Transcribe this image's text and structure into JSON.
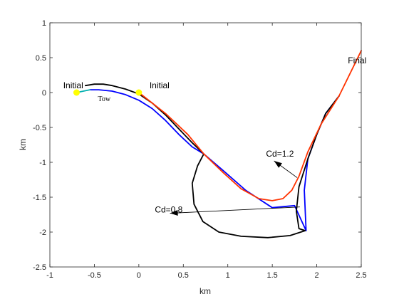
{
  "chart_data": {
    "type": "line",
    "xlabel": "km",
    "ylabel": "km",
    "xlim": [
      -1,
      2.5
    ],
    "ylim": [
      -2.5,
      1
    ],
    "xticks": [
      "-1",
      "-0.5",
      "0",
      "0.5",
      "1",
      "1.5",
      "2",
      "2.5"
    ],
    "yticks": [
      "1",
      "0.5",
      "0",
      "-0.5",
      "-1",
      "-1.5",
      "-2",
      "-2.5"
    ],
    "grid": false,
    "series": [
      {
        "color": "#0000ff",
        "x": [
          -0.55,
          -0.45,
          -0.3,
          -0.15,
          0,
          0.15,
          0.3,
          0.45,
          0.6,
          0.73,
          0.95,
          1.2,
          1.5,
          1.75,
          1.88,
          1.86,
          1.9,
          2.0,
          2.1,
          2.25
        ],
        "y": [
          0.04,
          0.04,
          0.02,
          -0.03,
          -0.11,
          -0.23,
          -0.4,
          -0.6,
          -0.78,
          -0.88,
          -1.12,
          -1.4,
          -1.65,
          -1.62,
          -1.98,
          -1.4,
          -0.95,
          -0.6,
          -0.3,
          -0.05
        ]
      },
      {
        "color": "#000000",
        "x": [
          -0.6,
          -0.5,
          -0.4,
          -0.3,
          -0.15,
          0,
          0.15,
          0.3,
          0.45,
          0.6,
          0.73
        ],
        "y": [
          0.1,
          0.12,
          0.12,
          0.1,
          0.05,
          -0.02,
          -0.15,
          -0.32,
          -0.52,
          -0.72,
          -0.88
        ]
      },
      {
        "color": "#000000",
        "x": [
          0.73,
          0.66,
          0.6,
          0.62,
          0.72,
          0.9,
          1.15,
          1.45,
          1.7,
          1.87,
          1.8,
          1.77,
          1.8,
          1.9,
          2.0,
          2.1,
          2.25
        ],
        "y": [
          -0.88,
          -1.05,
          -1.3,
          -1.6,
          -1.85,
          -2.0,
          -2.06,
          -2.08,
          -2.05,
          -1.98,
          -1.95,
          -1.7,
          -1.35,
          -0.95,
          -0.6,
          -0.3,
          -0.05
        ]
      },
      {
        "color": "#ff3300",
        "x": [
          0,
          0.3,
          0.55,
          0.73,
          0.95,
          1.15,
          1.35,
          1.5,
          1.62,
          1.72,
          1.8,
          1.9,
          2.05,
          2.25,
          2.5
        ],
        "y": [
          0,
          -0.3,
          -0.6,
          -0.88,
          -1.15,
          -1.38,
          -1.52,
          -1.55,
          -1.52,
          -1.4,
          -1.2,
          -0.85,
          -0.45,
          -0.05,
          0.6
        ]
      },
      {
        "color": "#00b0b0",
        "x": [
          -0.7,
          -0.55
        ],
        "y": [
          0,
          0.04
        ]
      }
    ],
    "markers": [
      {
        "x": -0.7,
        "y": 0,
        "color": "#ffff00"
      },
      {
        "x": 0,
        "y": 0,
        "color": "#ffff00"
      }
    ],
    "annotations": [
      {
        "text": "Initial",
        "x": -0.85,
        "y": 0.06
      },
      {
        "text": "Initial",
        "x": 0.12,
        "y": 0.06
      },
      {
        "text": "Final",
        "x": 2.35,
        "y": 0.42
      },
      {
        "text": "Tow",
        "x": -0.46,
        "y": -0.12
      },
      {
        "text": "Cd=1.2",
        "x": 1.43,
        "y": -0.92
      },
      {
        "text": "Cd=0.8",
        "x": 0.18,
        "y": -1.72
      }
    ],
    "arrows": [
      {
        "from": [
          1.78,
          -1.22
        ],
        "to": [
          1.52,
          -0.98
        ]
      },
      {
        "from": [
          1.81,
          -1.64
        ],
        "to": [
          0.35,
          -1.73
        ]
      }
    ]
  }
}
